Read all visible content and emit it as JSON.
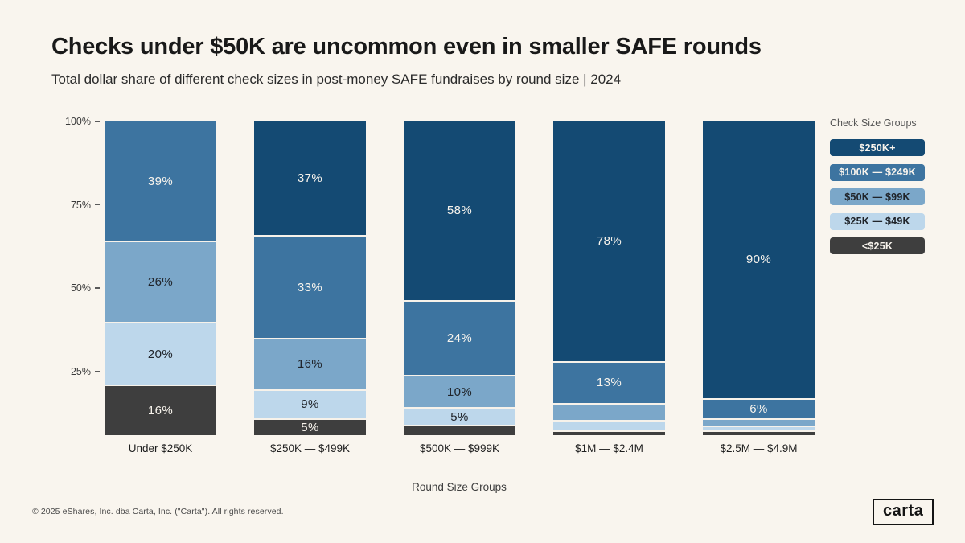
{
  "header": {
    "title": "Checks under $50K are uncommon even in smaller SAFE rounds",
    "subtitle": "Total dollar share of different check sizes in post-money SAFE fundraises by round size | 2024"
  },
  "chart_data": {
    "type": "bar",
    "variant": "stacked-vertical-100pct",
    "unit": "%",
    "ylim": [
      0,
      100
    ],
    "grid": false,
    "legend_position": "right",
    "legend_title": "Check Size Groups",
    "xlabel": "Round Size Groups",
    "y_ticks": [
      "100%",
      "75%",
      "50%",
      "25%"
    ],
    "y_tick_positions_pct": [
      100,
      75,
      50,
      25
    ],
    "categories": [
      "Under $250K",
      "$250K — $499K",
      "$500K — $999K",
      "$1M — $2.4M",
      "$2.5M — $4.9M"
    ],
    "groups": [
      {
        "name": "$250K+",
        "color": "#144a73",
        "text_color": "#f7f3ec"
      },
      {
        "name": "$100K — $249K",
        "color": "#3d74a0",
        "text_color": "#f7f3ec"
      },
      {
        "name": "$50K — $99K",
        "color": "#7ba7c9",
        "text_color": "#20242a"
      },
      {
        "name": "$25K — $49K",
        "color": "#bdd7eb",
        "text_color": "#20242a"
      },
      {
        "name": "<$25K",
        "color": "#3e3e3e",
        "text_color": "#f7f3ec"
      }
    ],
    "bars": [
      {
        "category": "Under $250K",
        "segments": [
          {
            "group": "$250K+",
            "value": 0,
            "label": ""
          },
          {
            "group": "$100K — $249K",
            "value": 39,
            "label": "39%"
          },
          {
            "group": "$50K — $99K",
            "value": 26,
            "label": "26%"
          },
          {
            "group": "$25K — $49K",
            "value": 20,
            "label": "20%"
          },
          {
            "group": "<$25K",
            "value": 16,
            "label": "16%"
          }
        ]
      },
      {
        "category": "$250K — $499K",
        "segments": [
          {
            "group": "$250K+",
            "value": 37,
            "label": "37%"
          },
          {
            "group": "$100K — $249K",
            "value": 33,
            "label": "33%"
          },
          {
            "group": "$50K — $99K",
            "value": 16,
            "label": "16%"
          },
          {
            "group": "$25K — $49K",
            "value": 9,
            "label": "9%"
          },
          {
            "group": "<$25K",
            "value": 5,
            "label": "5%"
          }
        ]
      },
      {
        "category": "$500K — $999K",
        "segments": [
          {
            "group": "$250K+",
            "value": 58,
            "label": "58%"
          },
          {
            "group": "$100K — $249K",
            "value": 24,
            "label": "24%"
          },
          {
            "group": "$50K — $99K",
            "value": 10,
            "label": "10%"
          },
          {
            "group": "$25K — $49K",
            "value": 5,
            "label": "5%"
          },
          {
            "group": "<$25K",
            "value": 3,
            "label": ""
          }
        ]
      },
      {
        "category": "$1M — $2.4M",
        "segments": [
          {
            "group": "$250K+",
            "value": 78,
            "label": "78%"
          },
          {
            "group": "$100K — $249K",
            "value": 13,
            "label": "13%"
          },
          {
            "group": "$50K — $99K",
            "value": 5,
            "label": ""
          },
          {
            "group": "$25K — $49K",
            "value": 3,
            "label": ""
          },
          {
            "group": "<$25K",
            "value": 1,
            "label": ""
          }
        ]
      },
      {
        "category": "$2.5M — $4.9M",
        "segments": [
          {
            "group": "$250K+",
            "value": 90,
            "label": "90%"
          },
          {
            "group": "$100K — $249K",
            "value": 6,
            "label": "6%"
          },
          {
            "group": "$50K — $99K",
            "value": 2,
            "label": ""
          },
          {
            "group": "$25K — $49K",
            "value": 1,
            "label": ""
          },
          {
            "group": "<$25K",
            "value": 1,
            "label": ""
          }
        ]
      }
    ]
  },
  "footer": {
    "copyright": "© 2025 eShares, Inc. dba Carta, Inc. (\"Carta\"). All rights reserved.",
    "logo_text": "carta"
  }
}
